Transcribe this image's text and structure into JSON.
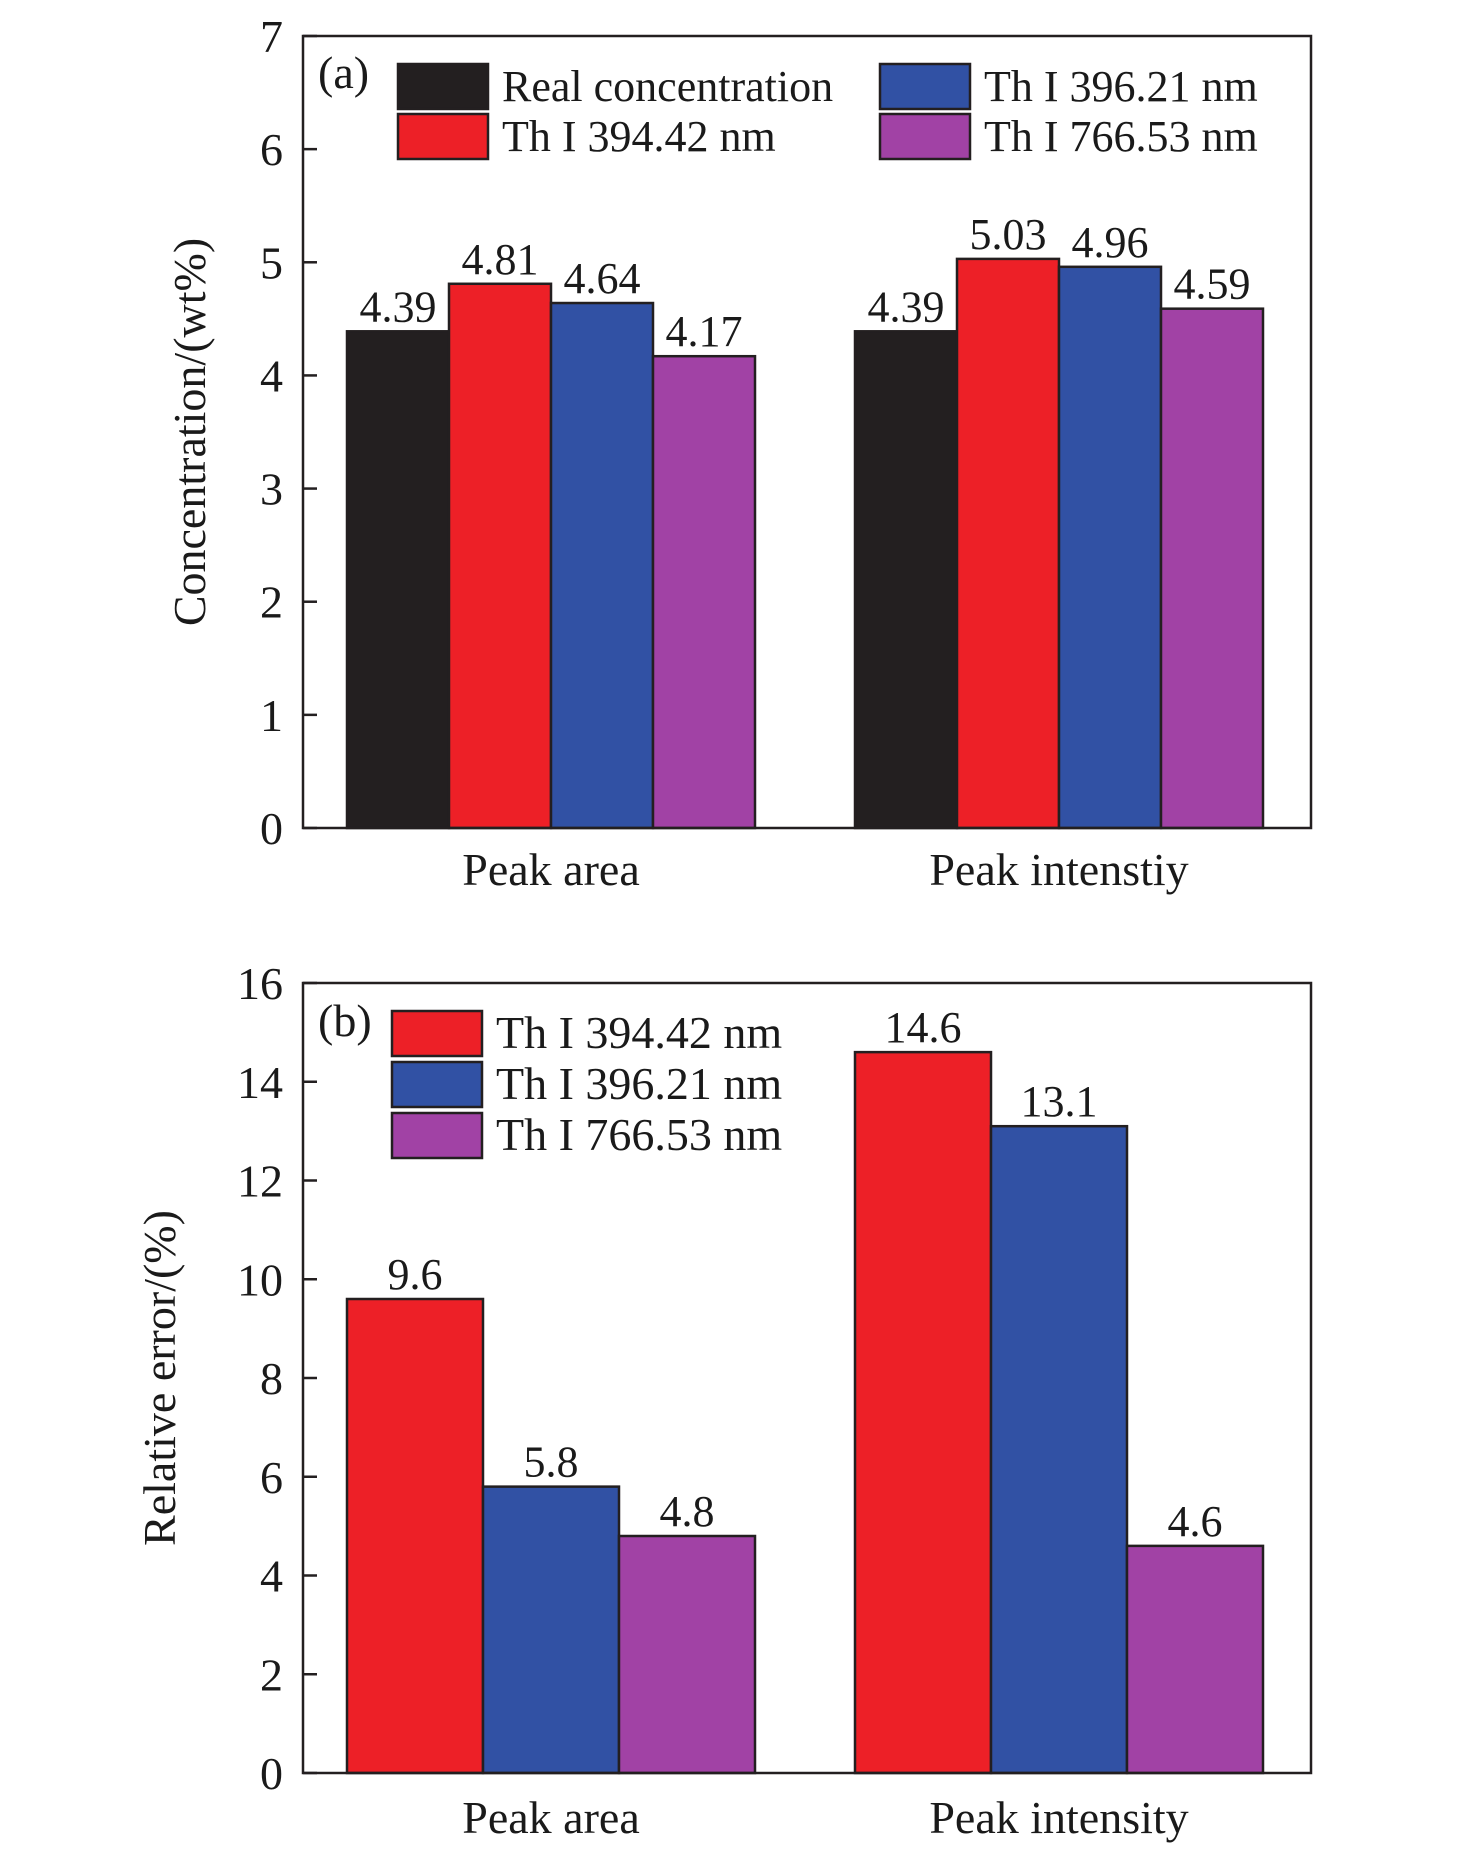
{
  "chart_data": [
    {
      "type": "bar",
      "panel_label": "(a)",
      "categories": [
        "Peak area",
        "Peak intenstiy"
      ],
      "series": [
        {
          "name": "Real concentration",
          "values": [
            4.39,
            4.39
          ],
          "labels": [
            "4.39",
            "4.39"
          ],
          "color": "#231f20"
        },
        {
          "name": "Th I 394.42 nm",
          "values": [
            4.81,
            5.03
          ],
          "labels": [
            "4.81",
            "5.03"
          ],
          "color": "#ed2027"
        },
        {
          "name": "Th I 396.21 nm",
          "values": [
            4.64,
            4.96
          ],
          "labels": [
            "4.64",
            "4.96"
          ],
          "color": "#3151a4"
        },
        {
          "name": "Th I 766.53 nm",
          "values": [
            4.17,
            4.59
          ],
          "labels": [
            "4.17",
            "4.59"
          ],
          "color": "#a142a5"
        }
      ],
      "ylabel": "Concentration/(wt%)",
      "ylim": [
        0,
        7
      ],
      "yticks": [
        0,
        1,
        2,
        3,
        4,
        5,
        6,
        7
      ],
      "legend_placement": "top",
      "legend_columns": 2,
      "grid": false
    },
    {
      "type": "bar",
      "panel_label": "(b)",
      "categories": [
        "Peak area",
        "Peak intensity"
      ],
      "series": [
        {
          "name": "Th I 394.42 nm",
          "values": [
            9.6,
            14.6
          ],
          "labels": [
            "9.6",
            "14.6"
          ],
          "color": "#ed2027"
        },
        {
          "name": "Th I 396.21 nm",
          "values": [
            5.8,
            13.1
          ],
          "labels": [
            "5.8",
            "13.1"
          ],
          "color": "#3151a4"
        },
        {
          "name": "Th I 766.53 nm",
          "values": [
            4.8,
            4.6
          ],
          "labels": [
            "4.8",
            "4.6"
          ],
          "color": "#a142a5"
        }
      ],
      "ylabel": "Relative error/(%)",
      "ylim": [
        0,
        16
      ],
      "yticks": [
        0,
        2,
        4,
        6,
        8,
        10,
        12,
        14,
        16
      ],
      "legend_placement": "top-left",
      "legend_columns": 1,
      "grid": false
    }
  ]
}
